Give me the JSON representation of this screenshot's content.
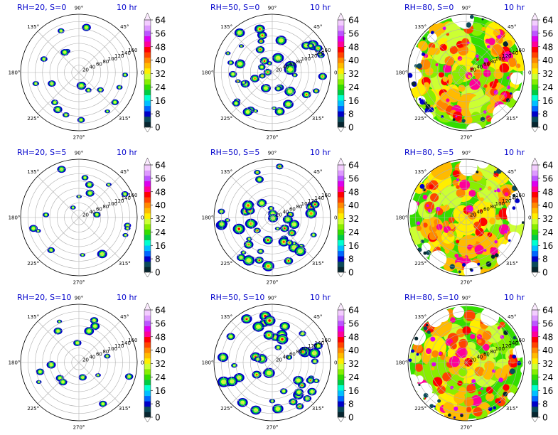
{
  "colors": {
    "title": "#0000cc",
    "palette": [
      "#07262f",
      "#0b4b5a",
      "#0000c8",
      "#0066ff",
      "#00bfff",
      "#00ffd0",
      "#00cc44",
      "#33dd00",
      "#88ee00",
      "#ccff33",
      "#ffee00",
      "#ffbb00",
      "#ff8800",
      "#ff4400",
      "#ff0000",
      "#ff0099",
      "#dd00ee",
      "#bb55ff",
      "#dd99ff",
      "#f3ccff"
    ]
  },
  "chart_data": [
    {
      "type": "heatmap",
      "projection": "polar",
      "title": "RH=20, S=0",
      "time_label": "10 hr",
      "rh": 20,
      "s": 0,
      "theta_labels": [
        "0°",
        "45°",
        "90°",
        "135°",
        "180°",
        "225°",
        "270°",
        "315°"
      ],
      "radial_ticks": [
        "20",
        "40",
        "60",
        "80",
        "100",
        "120",
        "140",
        "160"
      ],
      "colorbar_ticks": [
        "0",
        "8",
        "16",
        "24",
        "32",
        "40",
        "48",
        "56",
        "64"
      ],
      "colorbar_range": [
        0,
        64
      ],
      "cover_fraction": 0.06
    },
    {
      "type": "heatmap",
      "projection": "polar",
      "title": "RH=50, S=0",
      "time_label": "10 hr",
      "rh": 50,
      "s": 0,
      "theta_labels": [
        "0°",
        "45°",
        "90°",
        "135°",
        "180°",
        "225°",
        "270°",
        "315°"
      ],
      "radial_ticks": [
        "20",
        "40",
        "60",
        "80",
        "100",
        "120",
        "140",
        "160"
      ],
      "colorbar_ticks": [
        "0",
        "8",
        "16",
        "24",
        "32",
        "40",
        "48",
        "56",
        "64"
      ],
      "colorbar_range": [
        0,
        64
      ],
      "cover_fraction": 0.2
    },
    {
      "type": "heatmap",
      "projection": "polar",
      "title": "RH=80, S=0",
      "time_label": "10 hr",
      "rh": 80,
      "s": 0,
      "theta_labels": [
        "0°",
        "45°",
        "90°",
        "135°",
        "180°",
        "225°",
        "270°",
        "315°"
      ],
      "radial_ticks": [
        "20",
        "40",
        "60",
        "80",
        "100",
        "120",
        "140",
        "160"
      ],
      "colorbar_ticks": [
        "0",
        "8",
        "16",
        "24",
        "32",
        "40",
        "48",
        "56",
        "64"
      ],
      "colorbar_range": [
        0,
        64
      ],
      "cover_fraction": 0.82
    },
    {
      "type": "heatmap",
      "projection": "polar",
      "title": "RH=20, S=5",
      "time_label": "10 hr",
      "rh": 20,
      "s": 5,
      "theta_labels": [
        "0°",
        "45°",
        "90°",
        "135°",
        "180°",
        "225°",
        "270°",
        "315°"
      ],
      "radial_ticks": [
        "20",
        "40",
        "60",
        "80",
        "100",
        "120",
        "140",
        "160"
      ],
      "colorbar_ticks": [
        "0",
        "8",
        "16",
        "24",
        "32",
        "40",
        "48",
        "56",
        "64"
      ],
      "colorbar_range": [
        0,
        64
      ],
      "cover_fraction": 0.06
    },
    {
      "type": "heatmap",
      "projection": "polar",
      "title": "RH=50, S=5",
      "time_label": "10 hr",
      "rh": 50,
      "s": 5,
      "theta_labels": [
        "0°",
        "45°",
        "90°",
        "135°",
        "180°",
        "225°",
        "270°",
        "315°"
      ],
      "radial_ticks": [
        "20",
        "40",
        "60",
        "80",
        "100",
        "120",
        "140",
        "160"
      ],
      "colorbar_ticks": [
        "0",
        "8",
        "16",
        "24",
        "32",
        "40",
        "48",
        "56",
        "64"
      ],
      "colorbar_range": [
        0,
        64
      ],
      "cover_fraction": 0.2
    },
    {
      "type": "heatmap",
      "projection": "polar",
      "title": "RH=80, S=5",
      "time_label": "10 hr",
      "rh": 80,
      "s": 5,
      "theta_labels": [
        "0°",
        "45°",
        "90°",
        "135°",
        "180°",
        "225°",
        "270°",
        "315°"
      ],
      "radial_ticks": [
        "20",
        "40",
        "60",
        "80",
        "100",
        "120",
        "140",
        "160"
      ],
      "colorbar_ticks": [
        "0",
        "8",
        "16",
        "24",
        "32",
        "40",
        "48",
        "56",
        "64"
      ],
      "colorbar_range": [
        0,
        64
      ],
      "cover_fraction": 0.85
    },
    {
      "type": "heatmap",
      "projection": "polar",
      "title": "RH=20, S=10",
      "time_label": "10 hr",
      "rh": 20,
      "s": 10,
      "theta_labels": [
        "0°",
        "45°",
        "90°",
        "135°",
        "180°",
        "225°",
        "270°",
        "315°"
      ],
      "radial_ticks": [
        "20",
        "40",
        "60",
        "80",
        "100",
        "120",
        "140",
        "160"
      ],
      "colorbar_ticks": [
        "0",
        "8",
        "16",
        "24",
        "32",
        "40",
        "48",
        "56",
        "64"
      ],
      "colorbar_range": [
        0,
        64
      ],
      "cover_fraction": 0.05
    },
    {
      "type": "heatmap",
      "projection": "polar",
      "title": "RH=50, S=10",
      "time_label": "10 hr",
      "rh": 50,
      "s": 10,
      "theta_labels": [
        "0°",
        "45°",
        "90°",
        "135°",
        "180°",
        "225°",
        "270°",
        "315°"
      ],
      "radial_ticks": [
        "20",
        "40",
        "60",
        "80",
        "100",
        "120",
        "140",
        "160"
      ],
      "colorbar_ticks": [
        "0",
        "8",
        "16",
        "24",
        "32",
        "40",
        "48",
        "56",
        "64"
      ],
      "colorbar_range": [
        0,
        64
      ],
      "cover_fraction": 0.2
    },
    {
      "type": "heatmap",
      "projection": "polar",
      "title": "RH=80, S=10",
      "time_label": "10 hr",
      "rh": 80,
      "s": 10,
      "theta_labels": [
        "0°",
        "45°",
        "90°",
        "135°",
        "180°",
        "225°",
        "270°",
        "315°"
      ],
      "radial_ticks": [
        "20",
        "40",
        "60",
        "80",
        "100",
        "120",
        "140",
        "160"
      ],
      "colorbar_ticks": [
        "0",
        "8",
        "16",
        "24",
        "32",
        "40",
        "48",
        "56",
        "64"
      ],
      "colorbar_range": [
        0,
        64
      ],
      "cover_fraction": 0.82
    }
  ]
}
